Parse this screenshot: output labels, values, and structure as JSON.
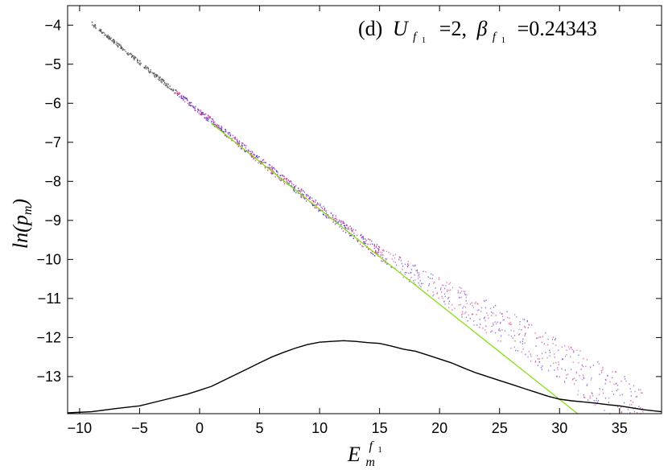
{
  "chart_data": {
    "type": "scatter",
    "panel_label": "(d)",
    "annotation_parts": {
      "u_symbol": "U",
      "u_sub": "f",
      "u_subsub": "1",
      "u_value": "=2,",
      "beta_symbol": "β",
      "beta_sub": "f",
      "beta_subsub": "1",
      "beta_value": "=0.24343"
    },
    "xlabel": {
      "base": "E",
      "sub": "m",
      "sup": "f",
      "supsub": "1"
    },
    "ylabel": "ln(p_m)",
    "ylabel_parts": {
      "prefix": "ln(p",
      "sub": "m",
      "suffix": ")"
    },
    "xlim": [
      -11,
      38.5
    ],
    "ylim": [
      -13.95,
      -3.5
    ],
    "xticks": [
      -10,
      -5,
      0,
      5,
      10,
      15,
      20,
      25,
      30,
      35
    ],
    "xtick_labels": [
      "−10",
      "−5",
      "0",
      "5",
      "10",
      "15",
      "20",
      "25",
      "30",
      "35"
    ],
    "yticks": [
      -4,
      -5,
      -6,
      -7,
      -8,
      -9,
      -10,
      -11,
      -12,
      -13
    ],
    "ytick_labels": [
      "−4",
      "−5",
      "−6",
      "−7",
      "−8",
      "−9",
      "−10",
      "−11",
      "−12",
      "−13"
    ],
    "grid": false,
    "colors": {
      "fit_line": "#7fe000",
      "scatter_blue": "#2a2ae0",
      "scatter_red": "#e0206a",
      "scatter_purple": "#a040c0",
      "histogram": "#000000",
      "scatter_gray": "#555555"
    },
    "series": [
      {
        "kind": "line",
        "color_key": "fit_line",
        "x": [
          1,
          31.5
        ],
        "y": [
          -6.52,
          -13.95
        ]
      },
      {
        "kind": "line",
        "color_key": "histogram",
        "x": [
          -11,
          -9,
          -7,
          -5,
          -3,
          -1,
          0,
          1,
          2,
          3,
          4,
          5,
          6,
          7,
          8,
          9,
          10,
          11,
          12,
          13,
          14,
          15,
          16,
          17,
          18,
          19,
          20,
          21,
          22,
          23,
          24,
          25,
          26,
          27,
          28,
          29,
          30,
          31,
          32,
          33,
          34,
          35,
          36,
          37,
          38.5
        ],
        "y": [
          -13.93,
          -13.9,
          -13.82,
          -13.75,
          -13.6,
          -13.45,
          -13.35,
          -13.25,
          -13.1,
          -12.95,
          -12.8,
          -12.65,
          -12.5,
          -12.38,
          -12.27,
          -12.18,
          -12.12,
          -12.1,
          -12.08,
          -12.1,
          -12.13,
          -12.15,
          -12.22,
          -12.3,
          -12.35,
          -12.45,
          -12.55,
          -12.65,
          -12.78,
          -12.9,
          -13.0,
          -13.1,
          -13.2,
          -13.3,
          -13.4,
          -13.5,
          -13.58,
          -13.62,
          -13.65,
          -13.68,
          -13.72,
          -13.75,
          -13.8,
          -13.85,
          -13.9
        ]
      },
      {
        "kind": "scatter_band",
        "description_points": [
          [
            -9,
            -3.95,
            0.05
          ],
          [
            -7,
            -4.45,
            0.05
          ],
          [
            -5,
            -4.95,
            0.05
          ],
          [
            -3,
            -5.45,
            0.06
          ],
          [
            -1,
            -5.95,
            0.07
          ],
          [
            1,
            -6.45,
            0.08
          ],
          [
            3,
            -6.95,
            0.09
          ],
          [
            5,
            -7.45,
            0.1
          ],
          [
            7,
            -7.95,
            0.1
          ],
          [
            9,
            -8.42,
            0.11
          ],
          [
            11,
            -8.92,
            0.12
          ],
          [
            13,
            -9.38,
            0.14
          ],
          [
            15,
            -9.82,
            0.18
          ],
          [
            17,
            -10.22,
            0.25
          ],
          [
            19,
            -10.6,
            0.3
          ],
          [
            21,
            -10.95,
            0.35
          ],
          [
            23,
            -11.3,
            0.4
          ],
          [
            25,
            -11.65,
            0.45
          ],
          [
            27,
            -12.0,
            0.5
          ],
          [
            29,
            -12.4,
            0.55
          ],
          [
            31,
            -12.8,
            0.6
          ],
          [
            33,
            -13.15,
            0.6
          ],
          [
            35,
            -13.5,
            0.6
          ],
          [
            37,
            -13.85,
            0.6
          ]
        ]
      }
    ]
  }
}
